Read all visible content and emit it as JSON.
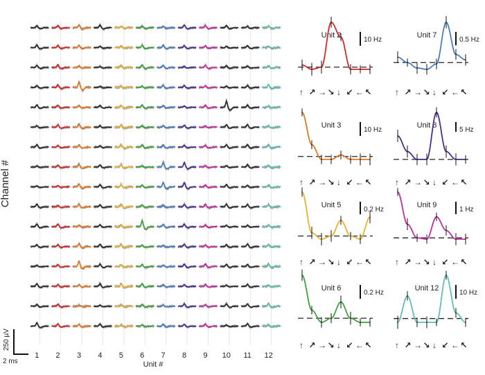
{
  "waveform_grid": {
    "ylabel": "Channel #",
    "xlabel": "Unit #",
    "channel_count": 16,
    "unit_labels": [
      "1",
      "2",
      "3",
      "4",
      "5",
      "6",
      "7",
      "8",
      "9",
      "10",
      "11",
      "12"
    ],
    "unit_colors": [
      "#2b2b2b",
      "#d62728",
      "#e87722",
      "#2b2b2b",
      "#e8b22e",
      "#3ea33e",
      "#4b7bbf",
      "#4b2d8f",
      "#c42da0",
      "#2b2b2b",
      "#2b2b2b",
      "#5fbfb2"
    ],
    "scale_bar": {
      "voltage_label": "250 µV",
      "time_label": "2 ms"
    }
  },
  "tuning_panel": {
    "direction_arrows": [
      "↑",
      "↗",
      "→",
      "↘",
      "↓",
      "↙",
      "←",
      "↖"
    ]
  },
  "chart_data": [
    {
      "type": "line",
      "title": "Unit 2",
      "color": "#d62728",
      "scale_label": "10 Hz",
      "scale_value": 10,
      "categories": [
        "up",
        "up-right",
        "right",
        "down-right",
        "down",
        "down-left",
        "left",
        "up-left"
      ],
      "values": [
        3,
        1,
        2,
        23,
        16,
        1,
        1,
        1
      ],
      "baseline_label": "dashed baseline",
      "baseline": 2
    },
    {
      "type": "line",
      "title": "Unit 3",
      "color": "#e87722",
      "scale_label": "10 Hz",
      "scale_value": 10,
      "categories": [
        "up",
        "up-right",
        "right",
        "down-right",
        "down",
        "down-left",
        "left",
        "up-left"
      ],
      "values": [
        32,
        10,
        0,
        0,
        3,
        0,
        0,
        0
      ],
      "baseline": 2
    },
    {
      "type": "line",
      "title": "Unit 5",
      "color": "#e8b22e",
      "scale_label": "0.2 Hz",
      "scale_value": 0.2,
      "categories": [
        "up",
        "up-right",
        "right",
        "down-right",
        "down",
        "down-left",
        "left",
        "up-left"
      ],
      "values": [
        0.75,
        0.1,
        0.0,
        0.05,
        0.3,
        0.05,
        0.0,
        0.35
      ],
      "baseline": 0.05
    },
    {
      "type": "line",
      "title": "Unit 6",
      "color": "#3ea33e",
      "scale_label": "0.2 Hz",
      "scale_value": 0.2,
      "categories": [
        "up",
        "up-right",
        "right",
        "down-right",
        "down",
        "down-left",
        "left",
        "up-left"
      ],
      "values": [
        0.58,
        0.15,
        0.0,
        0.05,
        0.25,
        0.05,
        0.0,
        0.0
      ],
      "baseline": 0.05
    },
    {
      "type": "line",
      "title": "Unit 7",
      "color": "#4b7bbf",
      "scale_label": "0.5 Hz",
      "scale_value": 0.5,
      "categories": [
        "up",
        "up-right",
        "right",
        "down-right",
        "down",
        "down-left",
        "left",
        "up-left"
      ],
      "values": [
        0.3,
        0.1,
        -0.1,
        -0.15,
        0.05,
        1.6,
        0.4,
        0.2
      ],
      "baseline": 0.1
    },
    {
      "type": "line",
      "title": "Unit 8",
      "color": "#4b2d8f",
      "scale_label": "5 Hz",
      "scale_value": 5,
      "categories": [
        "up",
        "up-right",
        "right",
        "down-right",
        "down",
        "down-left",
        "left",
        "up-left"
      ],
      "values": [
        12,
        4,
        0,
        0,
        24,
        4,
        0,
        0
      ],
      "baseline": 0
    },
    {
      "type": "line",
      "title": "Unit 9",
      "color": "#c42da0",
      "scale_label": "1 Hz",
      "scale_value": 1,
      "categories": [
        "up",
        "up-right",
        "right",
        "down-right",
        "down",
        "down-left",
        "left",
        "up-left"
      ],
      "values": [
        3.8,
        1.2,
        0.1,
        0.0,
        1.8,
        0.7,
        0.0,
        0.0
      ],
      "baseline": 0.1
    },
    {
      "type": "line",
      "title": "Unit 12",
      "color": "#5fbfb2",
      "scale_label": "10 Hz",
      "scale_value": 10,
      "categories": [
        "up",
        "up-right",
        "right",
        "down-right",
        "down",
        "down-left",
        "left",
        "up-left"
      ],
      "values": [
        0,
        14,
        0,
        0,
        0,
        25,
        5,
        0
      ],
      "baseline": 2
    }
  ]
}
